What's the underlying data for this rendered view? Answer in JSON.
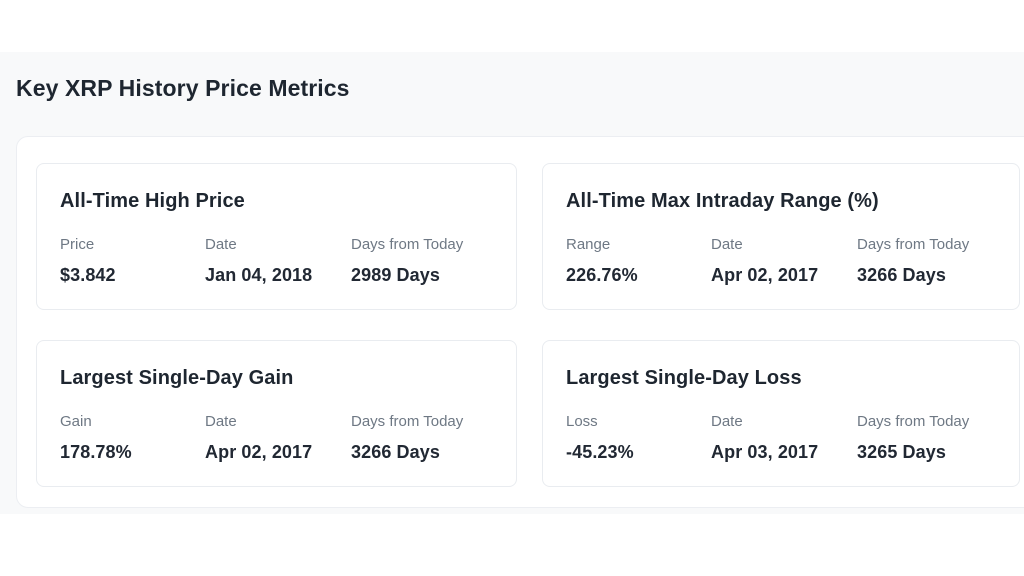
{
  "page": {
    "heading": "Key XRP History Price Metrics"
  },
  "colors": {
    "section_background": "#f8f9fa",
    "panel_background": "#ffffff",
    "card_border": "#e9ecf0",
    "heading_text": "#1e2630",
    "label_text": "#6e7884",
    "value_text": "#212833"
  },
  "cards": [
    {
      "title": "All-Time High Price",
      "metrics": [
        {
          "label": "Price",
          "value": "$3.842"
        },
        {
          "label": "Date",
          "value": "Jan 04, 2018"
        },
        {
          "label": "Days from Today",
          "value": "2989 Days"
        }
      ]
    },
    {
      "title": "All-Time Max Intraday Range (%)",
      "metrics": [
        {
          "label": "Range",
          "value": "226.76%"
        },
        {
          "label": "Date",
          "value": "Apr 02, 2017"
        },
        {
          "label": "Days from Today",
          "value": "3266 Days"
        }
      ]
    },
    {
      "title": "Largest Single-Day Gain",
      "metrics": [
        {
          "label": "Gain",
          "value": "178.78%"
        },
        {
          "label": "Date",
          "value": "Apr 02, 2017"
        },
        {
          "label": "Days from Today",
          "value": "3266 Days"
        }
      ]
    },
    {
      "title": "Largest Single-Day Loss",
      "metrics": [
        {
          "label": "Loss",
          "value": "-45.23%"
        },
        {
          "label": "Date",
          "value": "Apr 03, 2017"
        },
        {
          "label": "Days from Today",
          "value": "3265 Days"
        }
      ]
    }
  ]
}
